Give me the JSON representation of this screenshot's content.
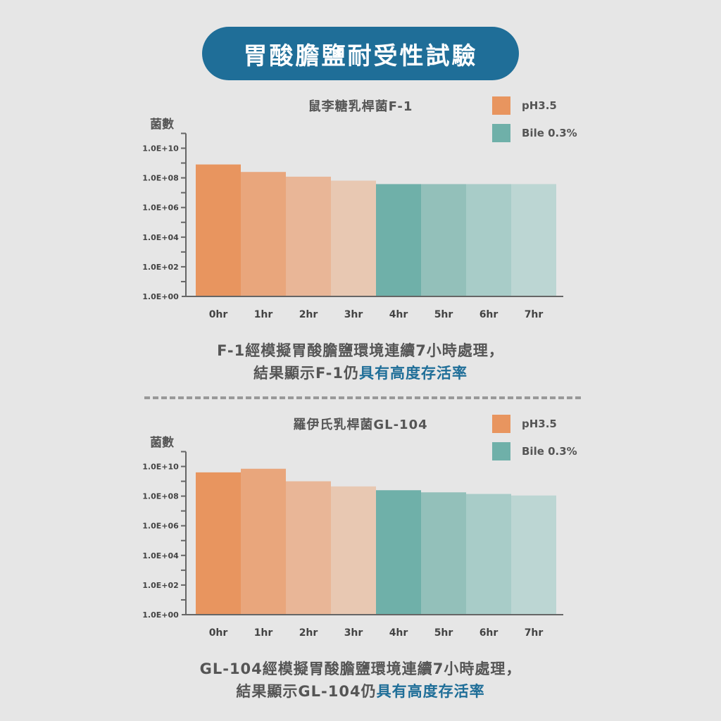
{
  "title": "胃酸膽鹽耐受性試驗",
  "legend": [
    {
      "label": "pH3.5",
      "color": "#e8955f"
    },
    {
      "label": "Bile 0.3%",
      "color": "#6fb0a9"
    }
  ],
  "chart_data": [
    {
      "type": "bar",
      "title": "鼠李糖乳桿菌F-1",
      "ylabel": "菌數",
      "y_scale": "log10",
      "ylim": [
        "1.0E+00",
        "1.0E+11"
      ],
      "yticks": [
        "1.0E+10",
        "1.0E+08",
        "1.0E+06",
        "1.0E+04",
        "1.0E+02",
        "1.0E+00"
      ],
      "categories": [
        "0hr",
        "1hr",
        "2hr",
        "3hr",
        "4hr",
        "5hr",
        "6hr",
        "7hr"
      ],
      "values": [
        800000000.0,
        250000000.0,
        120000000.0,
        65000000.0,
        38000000.0,
        38000000.0,
        38000000.0,
        38000000.0
      ],
      "colors": [
        "#e8955f",
        "#e9a67c",
        "#e9b697",
        "#e8c8b2",
        "#6fb0a9",
        "#93c0ba",
        "#a8ccc8",
        "#bcd6d3"
      ]
    },
    {
      "type": "bar",
      "title": "羅伊氏乳桿菌GL-104",
      "ylabel": "菌數",
      "y_scale": "log10",
      "ylim": [
        "1.0E+00",
        "1.0E+11"
      ],
      "yticks": [
        "1.0E+10",
        "1.0E+08",
        "1.0E+06",
        "1.0E+04",
        "1.0E+02",
        "1.0E+00"
      ],
      "categories": [
        "0hr",
        "1hr",
        "2hr",
        "3hr",
        "4hr",
        "5hr",
        "6hr",
        "7hr"
      ],
      "values": [
        4000000000.0,
        7000000000.0,
        1000000000.0,
        450000000.0,
        250000000.0,
        180000000.0,
        140000000.0,
        110000000.0
      ],
      "colors": [
        "#e8955f",
        "#e9a67c",
        "#e9b697",
        "#e8c8b2",
        "#6fb0a9",
        "#93c0ba",
        "#a8ccc8",
        "#bcd6d3"
      ]
    }
  ],
  "captions": [
    {
      "line1": "F-1經模擬胃酸膽鹽環境連續7小時處理，",
      "line2_prefix": "結果顯示F-1仍",
      "line2_highlight": "具有高度存活率"
    },
    {
      "line1": "GL-104經模擬胃酸膽鹽環境連續7小時處理，",
      "line2_prefix": "結果顯示GL-104仍",
      "line2_highlight": "具有高度存活率"
    }
  ]
}
